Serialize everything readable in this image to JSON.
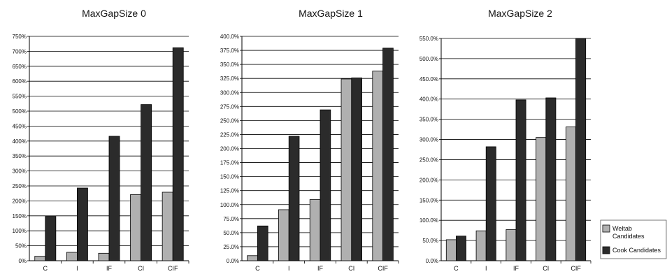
{
  "chart_data": [
    {
      "type": "bar",
      "title": "MaxGapSize 0",
      "categories": [
        "C",
        "I",
        "IF",
        "CI",
        "CIF"
      ],
      "ylim": [
        0,
        750
      ],
      "yticks": [
        0,
        50,
        100,
        150,
        200,
        250,
        300,
        350,
        400,
        450,
        500,
        550,
        600,
        650,
        700,
        750
      ],
      "tick_format": "0%",
      "grid": true,
      "series": [
        {
          "name": "Weltab Candidates",
          "values": [
            15,
            28,
            25,
            221,
            229
          ]
        },
        {
          "name": "Cook Candidates",
          "values": [
            148,
            243,
            416,
            522,
            712
          ]
        }
      ]
    },
    {
      "type": "bar",
      "title": "MaxGapSize 1",
      "categories": [
        "C",
        "I",
        "IF",
        "CI",
        "CIF"
      ],
      "ylim": [
        0,
        400
      ],
      "yticks": [
        0,
        25,
        50,
        75,
        100,
        125,
        150,
        175,
        200,
        225,
        250,
        275,
        300,
        325,
        350,
        375,
        400
      ],
      "tick_format": "0.0%",
      "grid": true,
      "series": [
        {
          "name": "Weltab Candidates",
          "values": [
            9,
            91,
            109,
            324,
            338
          ]
        },
        {
          "name": "Cook Candidates",
          "values": [
            62,
            222,
            269,
            326,
            379
          ]
        }
      ]
    },
    {
      "type": "bar",
      "title": "MaxGapSize 2",
      "categories": [
        "C",
        "I",
        "IF",
        "CI",
        "CIF"
      ],
      "ylim": [
        0,
        550
      ],
      "yticks": [
        0,
        50,
        100,
        150,
        200,
        250,
        300,
        350,
        400,
        450,
        500,
        550
      ],
      "tick_format": "0.0%",
      "grid": true,
      "legend": "right",
      "series": [
        {
          "name": "Weltab Candidates",
          "values": [
            52,
            74,
            77,
            305,
            331
          ]
        },
        {
          "name": "Cook Candidates",
          "values": [
            61,
            282,
            398,
            403,
            550
          ]
        }
      ]
    }
  ],
  "legend": {
    "items": [
      {
        "label_lines": [
          "Weltab",
          "Candidates"
        ],
        "color": "#b0b0b0"
      },
      {
        "label_lines": [
          "Cook Candidates"
        ],
        "color": "#2b2b2b"
      }
    ]
  },
  "colors": {
    "weltab": "#b0b0b0",
    "cook": "#2b2b2b",
    "grid": "#000000"
  }
}
